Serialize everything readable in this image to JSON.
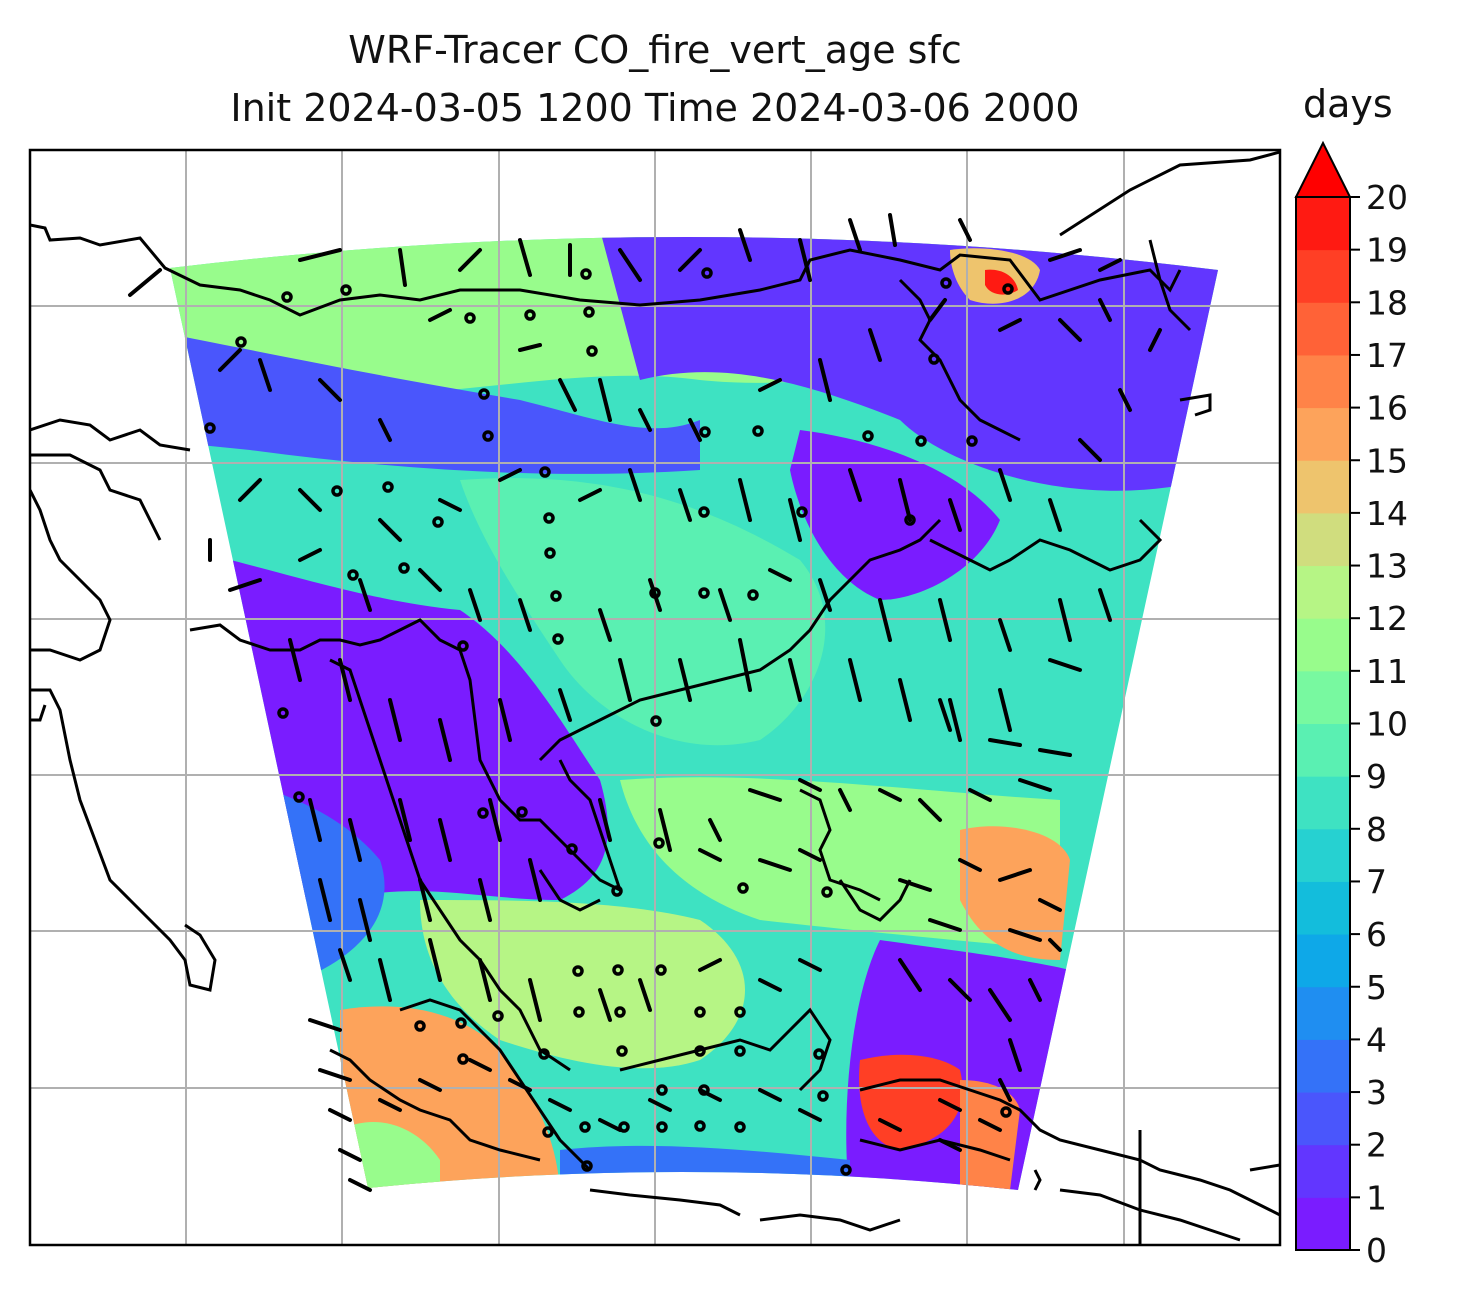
{
  "title_line1": "WRF-Tracer CO_fire_vert_age sfc",
  "title_line2": "Init 2024-03-05 1200 Time 2024-03-06 2000",
  "colorbar": {
    "unit": "days",
    "min": 0,
    "max": 20,
    "extend": "max",
    "tick_labels": [
      "0",
      "1",
      "2",
      "3",
      "4",
      "5",
      "6",
      "7",
      "8",
      "9",
      "10",
      "11",
      "12",
      "13",
      "14",
      "15",
      "16",
      "17",
      "18",
      "19",
      "20"
    ],
    "colors": [
      "#7a1cff",
      "#6236ff",
      "#4a56fc",
      "#3472f8",
      "#1f8ef1",
      "#0ea8e8",
      "#13bddc",
      "#26d1d1",
      "#3ee2c2",
      "#5af0b2",
      "#78f9a0",
      "#98fc8c",
      "#b6f585",
      "#d0dd7e",
      "#eec46d",
      "#fda35b",
      "#ff8348",
      "#ff6237",
      "#ff3f25",
      "#ff1a12"
    ],
    "extend_color": "#ff0000"
  },
  "map": {
    "features": [
      "coastlines",
      "gridlines",
      "wind-barbs",
      "filled-contour"
    ]
  }
}
